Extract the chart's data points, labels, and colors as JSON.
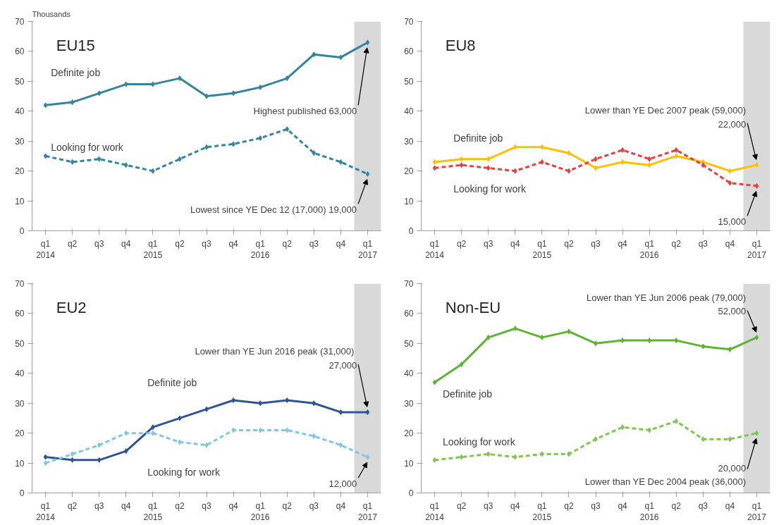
{
  "chart_data": [
    {
      "type": "line",
      "title": "EU15",
      "ylabel": "Thousands",
      "categories": [
        "q1\n2014",
        "q2",
        "q3",
        "q4",
        "q1\n2015",
        "q2",
        "q3",
        "q4",
        "q1\n2016",
        "q2",
        "q3",
        "q4",
        "q1\n2017"
      ],
      "ylim": [
        0,
        70
      ],
      "yticks": [
        0,
        10,
        20,
        30,
        40,
        50,
        60,
        70
      ],
      "grid": false,
      "marker": "diamond",
      "series": [
        {
          "name": "Definite job",
          "color": "#31859c",
          "line_style": "solid",
          "values": [
            42,
            43,
            46,
            49,
            49,
            51,
            45,
            46,
            48,
            51,
            59,
            58,
            63
          ]
        },
        {
          "name": "Looking for work",
          "color": "#31859c",
          "line_style": "dashed",
          "values": [
            25,
            23,
            24,
            22,
            20,
            24,
            28,
            29,
            31,
            34,
            26,
            23,
            19
          ]
        }
      ],
      "bands": [
        {
          "axis": "x",
          "from": "q1\n2017",
          "to": "q1\n2017",
          "color": "#d9d9d9"
        }
      ],
      "annotations": [
        {
          "text": "Highest published 63,000",
          "x": "q1\n2017",
          "y": 63
        },
        {
          "text": "Lowest since YE Dec 12 (17,000) 19,000",
          "x": "q1\n2017",
          "y": 19
        }
      ]
    },
    {
      "type": "line",
      "title": "EU8",
      "categories": [
        "q1\n2014",
        "q2",
        "q3",
        "q4",
        "q1\n2015",
        "q2",
        "q3",
        "q4",
        "q1\n2016",
        "q2",
        "q3",
        "q4",
        "q1\n2017"
      ],
      "ylim": [
        0,
        70
      ],
      "yticks": [
        0,
        10,
        20,
        30,
        40,
        50,
        60,
        70
      ],
      "grid": false,
      "marker": "diamond",
      "series": [
        {
          "name": "Definite job",
          "color": "#ffc000",
          "line_style": "solid",
          "values": [
            23,
            24,
            24,
            28,
            28,
            26,
            21,
            23,
            22,
            25,
            23,
            20,
            22
          ]
        },
        {
          "name": "Looking for work",
          "color": "#e8403d",
          "line_style": "dashed",
          "values": [
            21,
            22,
            21,
            20,
            23,
            20,
            24,
            27,
            24,
            27,
            22,
            16,
            15
          ]
        }
      ],
      "bands": [
        {
          "axis": "x",
          "from": "q1\n2017",
          "to": "q1\n2017",
          "color": "#d9d9d9"
        }
      ],
      "annotations": [
        {
          "text": "Lower than YE Dec 2007 peak (59,000)\n22,000",
          "x": "q1\n2017",
          "y": 22
        },
        {
          "text": "15,000",
          "x": "q1\n2017",
          "y": 15
        }
      ]
    },
    {
      "type": "line",
      "title": "EU2",
      "categories": [
        "q1\n2014",
        "q2",
        "q3",
        "q4",
        "q1\n2015",
        "q2",
        "q3",
        "q4",
        "q1\n2016",
        "q2",
        "q3",
        "q4",
        "q1\n2017"
      ],
      "ylim": [
        0,
        70
      ],
      "yticks": [
        0,
        10,
        20,
        30,
        40,
        50,
        60,
        70
      ],
      "grid": false,
      "marker": "diamond",
      "series": [
        {
          "name": "Definite job",
          "color": "#2f5597",
          "line_style": "solid",
          "values": [
            12,
            11,
            11,
            14,
            22,
            25,
            28,
            31,
            30,
            31,
            30,
            27,
            27
          ]
        },
        {
          "name": "Looking for work",
          "color": "#7ec8e3",
          "line_style": "dashed",
          "values": [
            10,
            13,
            16,
            20,
            20,
            17,
            16,
            21,
            21,
            21,
            19,
            16,
            12
          ]
        }
      ],
      "bands": [
        {
          "axis": "x",
          "from": "q1\n2017",
          "to": "q1\n2017",
          "color": "#d9d9d9"
        }
      ],
      "annotations": [
        {
          "text": "Lower than YE Jun 2016  peak (31,000)\n27,000",
          "x": "q1\n2017",
          "y": 27
        },
        {
          "text": "12,000",
          "x": "q1\n2017",
          "y": 12
        }
      ]
    },
    {
      "type": "line",
      "title": "Non-EU",
      "categories": [
        "q1\n2014",
        "q2",
        "q3",
        "q4",
        "q1\n2015",
        "q2",
        "q3",
        "q4",
        "q1\n2016",
        "q2",
        "q3",
        "q4",
        "q1\n2017"
      ],
      "ylim": [
        0,
        70
      ],
      "yticks": [
        0,
        10,
        20,
        30,
        40,
        50,
        60,
        70
      ],
      "grid": false,
      "marker": "diamond",
      "series": [
        {
          "name": "Definite job",
          "color": "#5cb531",
          "line_style": "solid",
          "values": [
            37,
            43,
            52,
            55,
            52,
            54,
            50,
            51,
            51,
            51,
            49,
            48,
            52
          ]
        },
        {
          "name": "Looking for work",
          "color": "#7cc84b",
          "line_style": "dashed",
          "values": [
            11,
            12,
            13,
            12,
            13,
            13,
            18,
            22,
            21,
            24,
            18,
            18,
            20
          ]
        }
      ],
      "bands": [
        {
          "axis": "x",
          "from": "q1\n2017",
          "to": "q1\n2017",
          "color": "#d9d9d9"
        }
      ],
      "annotations": [
        {
          "text": "Lower than YE Jun 2006 peak (79,000)\n52,000",
          "x": "q1\n2017",
          "y": 52
        },
        {
          "text": "20,000\nLower than YE Dec 2004 peak (36,000)",
          "x": "q1\n2017",
          "y": 20
        }
      ]
    }
  ]
}
